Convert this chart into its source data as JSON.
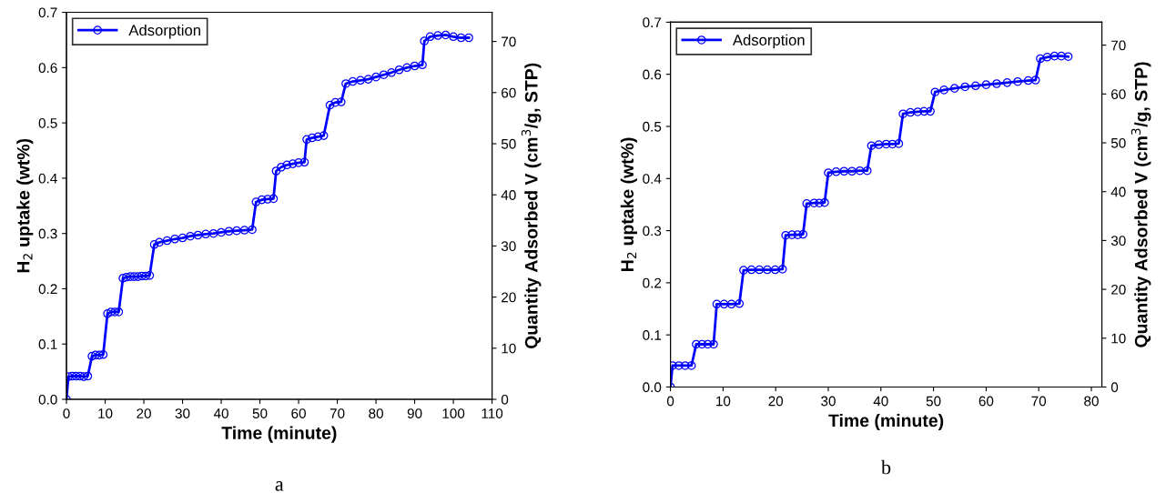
{
  "chart_data": [
    {
      "type": "line",
      "xlabel": "Time (minute)",
      "ylabel": "H$_{2}$ uptake (wt%)",
      "y2label": "Quantity Adsorbed V (cm$^{3}$/g, STP)",
      "xlim": [
        0,
        110
      ],
      "xticks": [
        0,
        10,
        20,
        30,
        40,
        50,
        60,
        70,
        80,
        90,
        100,
        110
      ],
      "ylim": [
        0,
        0.7
      ],
      "yticks": [
        {
          "value": 0,
          "label": "0.0"
        },
        0.1,
        0.2,
        0.3,
        0.4,
        0.5,
        0.6,
        0.7
      ],
      "y2lim": [
        0,
        75.7
      ],
      "y2ticks": [
        0,
        10,
        20,
        30,
        40,
        50,
        60,
        70
      ],
      "marker": "circle",
      "line_style": "solid",
      "legend": "top left",
      "grid": false,
      "annotations": [
        "a"
      ],
      "series": [
        {
          "name": "Adsorption",
          "color": "#0000ff",
          "x": [
            0,
            0.5,
            1.5,
            2.5,
            3.5,
            4.5,
            5.5,
            6.6,
            7.5,
            8.5,
            9.5,
            10.6,
            11.5,
            12.5,
            13.5,
            14.6,
            15.5,
            16.5,
            17.5,
            18.5,
            19.5,
            20.5,
            21.5,
            22.7,
            24,
            26,
            28,
            30,
            32,
            34,
            36,
            38,
            40,
            42,
            44,
            46,
            48,
            49,
            50.5,
            52,
            53.5,
            54.2,
            55.5,
            57,
            58.5,
            60,
            61.5,
            62.1,
            63.5,
            65,
            66.5,
            68.1,
            69.5,
            71,
            72.2,
            74,
            76,
            78,
            80,
            82,
            84,
            86,
            88,
            90,
            92,
            92.5,
            94,
            96,
            98,
            100,
            102,
            104
          ],
          "values": [
            0,
            0.041,
            0.042,
            0.042,
            0.042,
            0.041,
            0.042,
            0.078,
            0.08,
            0.08,
            0.081,
            0.155,
            0.158,
            0.158,
            0.158,
            0.219,
            0.221,
            0.222,
            0.222,
            0.222,
            0.223,
            0.223,
            0.224,
            0.28,
            0.284,
            0.287,
            0.29,
            0.292,
            0.295,
            0.297,
            0.299,
            0.3,
            0.302,
            0.304,
            0.305,
            0.306,
            0.307,
            0.357,
            0.361,
            0.362,
            0.363,
            0.413,
            0.42,
            0.424,
            0.426,
            0.428,
            0.429,
            0.47,
            0.473,
            0.475,
            0.477,
            0.532,
            0.537,
            0.538,
            0.571,
            0.575,
            0.577,
            0.579,
            0.583,
            0.587,
            0.591,
            0.596,
            0.6,
            0.603,
            0.605,
            0.648,
            0.656,
            0.658,
            0.659,
            0.656,
            0.654,
            0.654
          ]
        }
      ]
    },
    {
      "type": "line",
      "xlabel": "Time (minute)",
      "ylabel": "H$_{2}$ uptake (wt%)",
      "y2label": "Quantity Adsorbed V (cm$^{3}$/g, STP)",
      "xlim": [
        0,
        82
      ],
      "xticks": [
        0,
        10,
        20,
        30,
        40,
        50,
        60,
        70,
        80
      ],
      "ylim": [
        0,
        0.7
      ],
      "yticks": [
        {
          "value": 0,
          "label": "0.0"
        },
        0.1,
        0.2,
        0.3,
        0.4,
        0.5,
        0.6,
        0.7
      ],
      "y2lim": [
        0,
        74.7
      ],
      "y2ticks": [
        0,
        10,
        20,
        30,
        40,
        50,
        60,
        70
      ],
      "marker": "circle",
      "line_style": "solid",
      "legend": "top left",
      "grid": false,
      "annotations": [
        "b"
      ],
      "series": [
        {
          "name": "Adsorption",
          "color": "#0000ff",
          "x": [
            0,
            0.4,
            1.6,
            2.8,
            4,
            4.9,
            6,
            7.1,
            8.2,
            8.8,
            10.2,
            11.6,
            13.1,
            13.9,
            15.4,
            16.9,
            18.4,
            19.9,
            21.3,
            21.9,
            23.1,
            24.2,
            25.2,
            25.9,
            27.3,
            28.3,
            29.3,
            30,
            31.5,
            33,
            34.5,
            36,
            37.4,
            38.2,
            39.6,
            41,
            42.2,
            43.4,
            44.2,
            45.6,
            47,
            48.2,
            49.4,
            50.3,
            52,
            54,
            56,
            58,
            60,
            62,
            64,
            66,
            68,
            69.4,
            70.3,
            71.6,
            73,
            74.3,
            75.6
          ],
          "values": [
            0,
            0.041,
            0.041,
            0.041,
            0.041,
            0.082,
            0.082,
            0.082,
            0.082,
            0.159,
            0.159,
            0.159,
            0.16,
            0.224,
            0.225,
            0.225,
            0.225,
            0.225,
            0.226,
            0.291,
            0.292,
            0.292,
            0.293,
            0.352,
            0.353,
            0.353,
            0.354,
            0.411,
            0.413,
            0.414,
            0.414,
            0.415,
            0.415,
            0.463,
            0.465,
            0.466,
            0.466,
            0.467,
            0.524,
            0.527,
            0.528,
            0.529,
            0.529,
            0.566,
            0.57,
            0.573,
            0.576,
            0.578,
            0.58,
            0.582,
            0.584,
            0.586,
            0.588,
            0.589,
            0.63,
            0.633,
            0.635,
            0.635,
            0.634
          ]
        }
      ]
    }
  ]
}
